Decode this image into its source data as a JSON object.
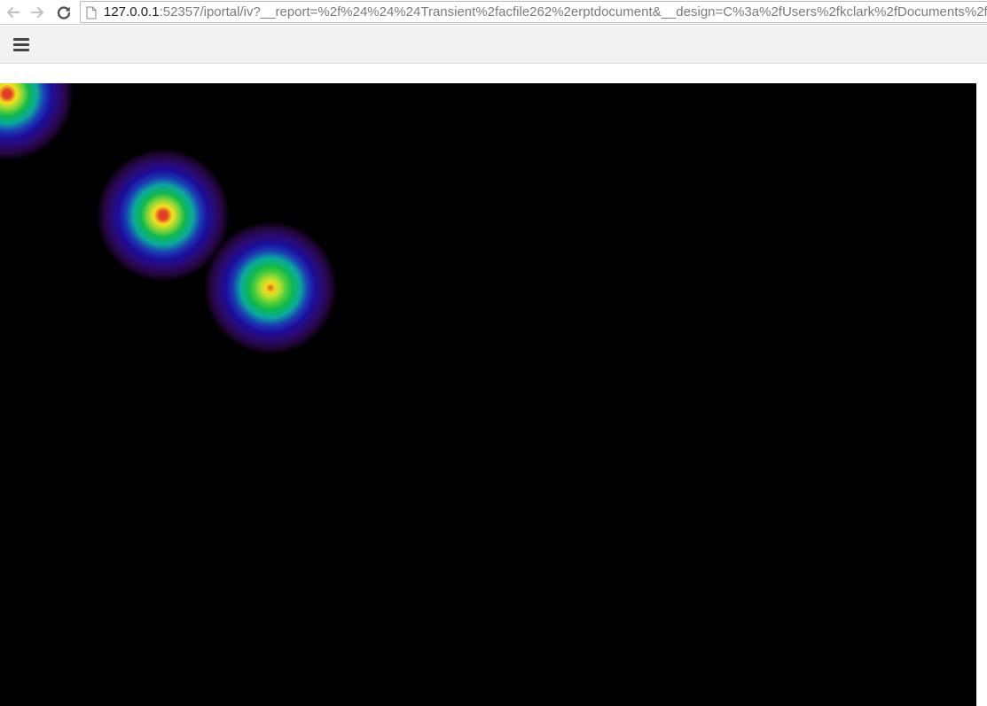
{
  "browser": {
    "url_host": "127.0.0.1",
    "url_rest": ":52357/iportal/iv?__report=%2f%24%24%24Transient%2facfile262%2erptdocument&__design=C%3a%2fUsers%2fkclark%2fDocuments%2f",
    "icons": {
      "back": "back-arrow-icon",
      "forward": "forward-arrow-icon",
      "reload": "reload-icon",
      "page": "page-icon"
    }
  },
  "toolbar": {
    "menu_icon": "hamburger-menu-icon"
  },
  "report": {
    "background": "#000000",
    "heat_spots": 3
  }
}
